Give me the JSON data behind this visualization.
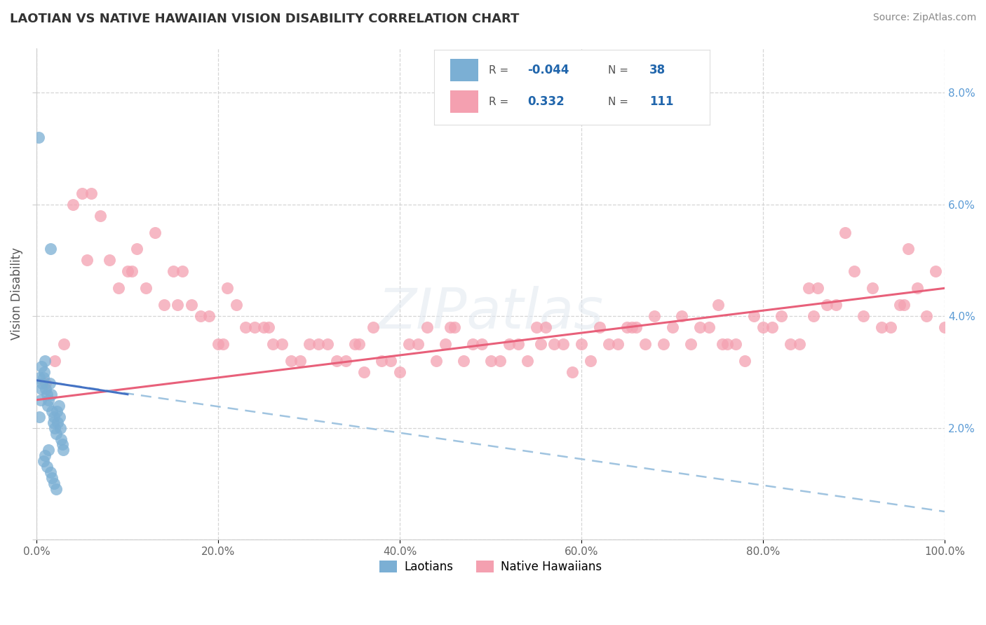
{
  "title": "LAOTIAN VS NATIVE HAWAIIAN VISION DISABILITY CORRELATION CHART",
  "source": "Source: ZipAtlas.com",
  "ylabel": "Vision Disability",
  "xlim": [
    0,
    100
  ],
  "ylim": [
    0,
    8.8
  ],
  "xticks": [
    0,
    20,
    40,
    60,
    80,
    100
  ],
  "yticks": [
    0,
    2,
    4,
    6,
    8
  ],
  "xticklabels": [
    "0.0%",
    "20.0%",
    "40.0%",
    "60.0%",
    "80.0%",
    "100.0%"
  ],
  "yticklabels_right": [
    "",
    "2.0%",
    "4.0%",
    "6.0%",
    "8.0%"
  ],
  "laotian_color": "#7bafd4",
  "hawaiian_color": "#f4a0b0",
  "laotian_trend_solid_color": "#4472c4",
  "hawaiian_trend_color": "#e8607a",
  "laotian_trend_dashed_color": "#a0c4e0",
  "background_color": "#ffffff",
  "grid_color": "#cccccc",
  "tick_color": "#5b9bd5",
  "laotian_x": [
    0.2,
    0.3,
    0.4,
    0.5,
    0.6,
    0.7,
    0.8,
    0.9,
    1.0,
    1.1,
    1.2,
    1.3,
    1.4,
    1.5,
    1.6,
    1.7,
    1.8,
    1.9,
    2.0,
    2.1,
    2.2,
    2.3,
    2.4,
    2.5,
    2.6,
    2.7,
    2.8,
    2.9,
    0.3,
    0.5,
    0.7,
    0.9,
    1.1,
    1.3,
    1.5,
    1.7,
    1.9,
    2.1
  ],
  "laotian_y": [
    7.2,
    2.2,
    2.5,
    3.1,
    2.8,
    2.9,
    3.0,
    3.2,
    2.7,
    2.6,
    2.4,
    2.5,
    2.8,
    5.2,
    2.6,
    2.3,
    2.1,
    2.2,
    2.0,
    1.9,
    2.3,
    2.1,
    2.4,
    2.2,
    2.0,
    1.8,
    1.7,
    1.6,
    2.9,
    2.7,
    1.4,
    1.5,
    1.3,
    1.6,
    1.2,
    1.1,
    1.0,
    0.9
  ],
  "hawaiian_x": [
    1.0,
    3.0,
    5.0,
    7.0,
    9.0,
    11.0,
    13.0,
    15.0,
    17.0,
    19.0,
    21.0,
    23.0,
    25.0,
    27.0,
    29.0,
    31.0,
    33.0,
    35.0,
    37.0,
    39.0,
    41.0,
    43.0,
    45.0,
    47.0,
    49.0,
    51.0,
    53.0,
    55.0,
    57.0,
    59.0,
    61.0,
    63.0,
    65.0,
    67.0,
    69.0,
    71.0,
    73.0,
    75.0,
    77.0,
    79.0,
    81.0,
    83.0,
    85.0,
    87.0,
    89.0,
    91.0,
    93.0,
    95.0,
    97.0,
    99.0,
    2.0,
    4.0,
    6.0,
    8.0,
    10.0,
    12.0,
    14.0,
    16.0,
    18.0,
    20.0,
    22.0,
    24.0,
    26.0,
    28.0,
    30.0,
    32.0,
    34.0,
    36.0,
    38.0,
    40.0,
    42.0,
    44.0,
    46.0,
    48.0,
    50.0,
    52.0,
    54.0,
    56.0,
    58.0,
    60.0,
    62.0,
    64.0,
    66.0,
    68.0,
    70.0,
    72.0,
    74.0,
    76.0,
    78.0,
    80.0,
    82.0,
    84.0,
    86.0,
    88.0,
    90.0,
    92.0,
    94.0,
    96.0,
    98.0,
    100.0,
    5.5,
    15.5,
    25.5,
    35.5,
    45.5,
    55.5,
    65.5,
    75.5,
    85.5,
    95.5,
    10.5,
    20.5
  ],
  "hawaiian_y": [
    2.8,
    3.5,
    6.2,
    5.8,
    4.5,
    5.2,
    5.5,
    4.8,
    4.2,
    4.0,
    4.5,
    3.8,
    3.8,
    3.5,
    3.2,
    3.5,
    3.2,
    3.5,
    3.8,
    3.2,
    3.5,
    3.8,
    3.5,
    3.2,
    3.5,
    3.2,
    3.5,
    3.8,
    3.5,
    3.0,
    3.2,
    3.5,
    3.8,
    3.5,
    3.5,
    4.0,
    3.8,
    4.2,
    3.5,
    4.0,
    3.8,
    3.5,
    4.5,
    4.2,
    5.5,
    4.0,
    3.8,
    4.2,
    4.5,
    4.8,
    3.2,
    6.0,
    6.2,
    5.0,
    4.8,
    4.5,
    4.2,
    4.8,
    4.0,
    3.5,
    4.2,
    3.8,
    3.5,
    3.2,
    3.5,
    3.5,
    3.2,
    3.0,
    3.2,
    3.0,
    3.5,
    3.2,
    3.8,
    3.5,
    3.2,
    3.5,
    3.2,
    3.8,
    3.5,
    3.5,
    3.8,
    3.5,
    3.8,
    4.0,
    3.8,
    3.5,
    3.8,
    3.5,
    3.2,
    3.8,
    4.0,
    3.5,
    4.5,
    4.2,
    4.8,
    4.5,
    3.8,
    5.2,
    4.0,
    3.8,
    5.0,
    4.2,
    3.8,
    3.5,
    3.8,
    3.5,
    3.8,
    3.5,
    4.0,
    4.2,
    4.8,
    3.5
  ],
  "haw_trend_x0": 0,
  "haw_trend_y0": 2.5,
  "haw_trend_x1": 100,
  "haw_trend_y1": 4.5,
  "lao_solid_x0": 0,
  "lao_solid_y0": 2.85,
  "lao_solid_x1": 10,
  "lao_solid_y1": 2.6,
  "lao_dashed_x0": 0,
  "lao_dashed_y0": 2.85,
  "lao_dashed_x1": 100,
  "lao_dashed_y1": 0.5
}
